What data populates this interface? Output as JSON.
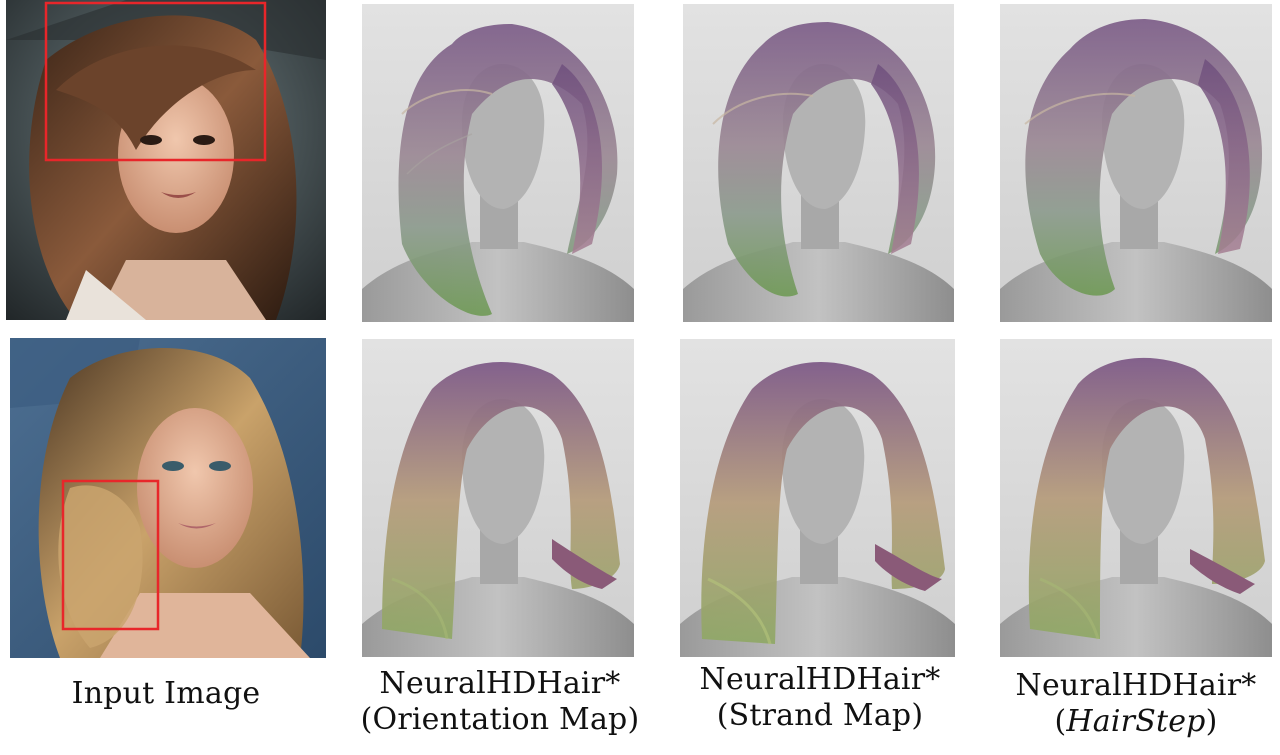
{
  "columns": [
    {
      "id": "input",
      "caption_lines": [
        "Input Image"
      ]
    },
    {
      "id": "orientation",
      "caption_lines": [
        "NeuralHDHair*",
        "(Orientation Map)"
      ]
    },
    {
      "id": "strand",
      "caption_lines": [
        "NeuralHDHair*",
        "(Strand Map)"
      ]
    },
    {
      "id": "hairstep",
      "caption_lines": [
        "NeuralHDHair*",
        "(",
        "HairStep",
        ")"
      ]
    }
  ],
  "rows": [
    {
      "id": "row-1",
      "input_photo": {
        "subject": "woman with voluminous brown layered hair",
        "crop_box_color": "#e8262a"
      },
      "renders": [
        "orientation",
        "strand",
        "hairstep"
      ]
    },
    {
      "id": "row-2",
      "input_photo": {
        "subject": "woman with long wavy highlighted hair",
        "crop_box_color": "#e8262a"
      },
      "renders": [
        "orientation",
        "strand",
        "hairstep"
      ]
    }
  ],
  "colors": {
    "render_background": "#d6d6d6",
    "mannequin": "#a9a9a9",
    "hair_purple": "#7a5a86",
    "hair_tan": "#b59b7a",
    "hair_green": "#7f9a5c",
    "crop_box": "#e8262a"
  }
}
